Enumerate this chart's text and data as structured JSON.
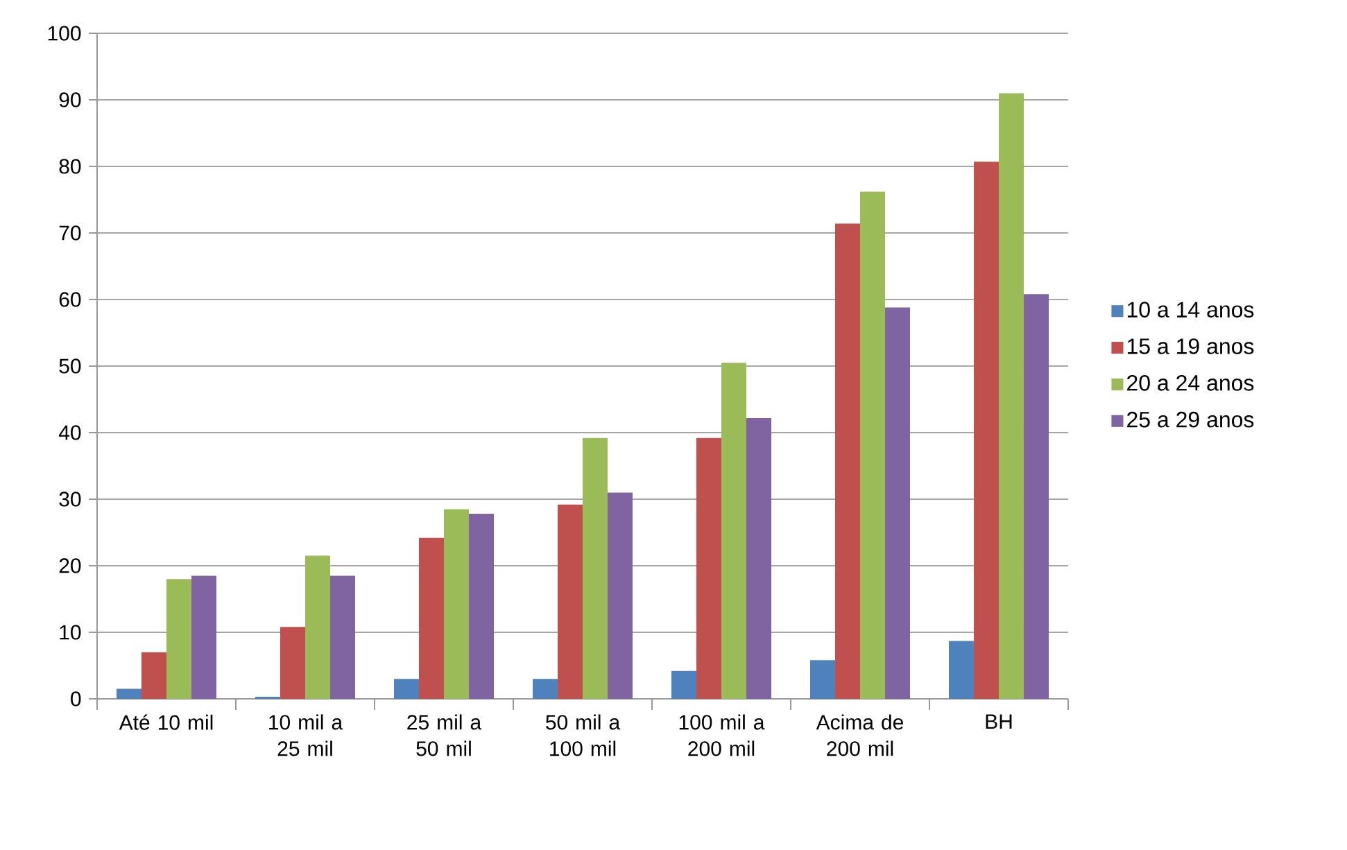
{
  "chart_data": {
    "type": "bar",
    "categories": [
      "Até 10 mil",
      "10 mil a 25 mil",
      "25 mil a 50 mil",
      "50 mil a 100 mil",
      "100 mil a 200 mil",
      "Acima de 200 mil",
      "BH"
    ],
    "series": [
      {
        "name": "10 a 14 anos",
        "color": "#4f81bd",
        "values": [
          1.5,
          0.3,
          3,
          3,
          4.2,
          5.8,
          8.7
        ]
      },
      {
        "name": "15 a 19 anos",
        "color": "#c0504d",
        "values": [
          7,
          10.8,
          24.2,
          29.2,
          39.2,
          71.4,
          80.7
        ]
      },
      {
        "name": "20 a 24 anos",
        "color": "#9bbb59",
        "values": [
          18,
          21.5,
          28.5,
          39.2,
          50.5,
          76.2,
          91
        ]
      },
      {
        "name": "25 a 29 anos",
        "color": "#8064a2",
        "values": [
          18.5,
          18.5,
          27.8,
          31,
          42.2,
          58.8,
          60.8
        ]
      }
    ],
    "ylim": [
      0,
      100
    ],
    "yticks": [
      0,
      10,
      20,
      30,
      40,
      50,
      60,
      70,
      80,
      90,
      100
    ],
    "grid": "y",
    "legend": "right"
  }
}
